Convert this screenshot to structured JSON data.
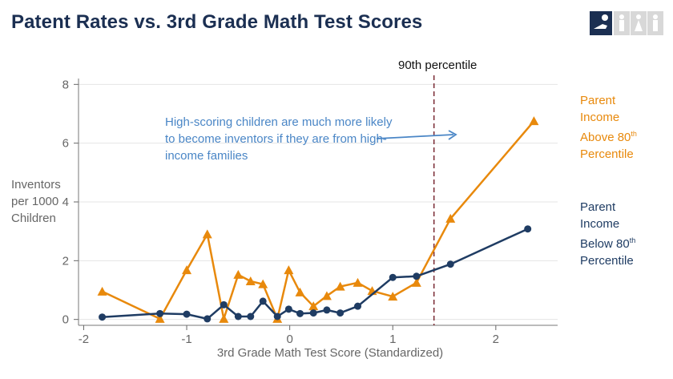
{
  "title": "Patent Rates vs. 3rd Grade Math Test Scores",
  "chart_data": {
    "type": "line",
    "xlabel": "3rd Grade Math Test Score (Standardized)",
    "ylabel_lines": [
      "Inventors",
      "per 1000",
      "Children"
    ],
    "xlim": [
      -2.05,
      2.6
    ],
    "ylim": [
      -0.2,
      8.2
    ],
    "x_ticks": [
      -2,
      -1,
      0,
      1,
      2
    ],
    "y_ticks": [
      0,
      2,
      4,
      6,
      8
    ],
    "grid": "horizontal",
    "reference_line": {
      "x": 1.4,
      "label": "90th percentile"
    },
    "annotation": "High-scoring children are much more likely to become inventors if they are from high-income families",
    "series": [
      {
        "key": "high",
        "legend": {
          "line1": "Parent",
          "line2": "Income",
          "line3": "Above 80",
          "sup": "th",
          "line4": "Percentile"
        },
        "color": "#e8890c",
        "marker": "triangle",
        "points": [
          [
            -1.82,
            0.95
          ],
          [
            -1.26,
            0.02
          ],
          [
            -1.0,
            1.68
          ],
          [
            -0.8,
            2.9
          ],
          [
            -0.64,
            0.02
          ],
          [
            -0.5,
            1.52
          ],
          [
            -0.38,
            1.3
          ],
          [
            -0.26,
            1.2
          ],
          [
            -0.12,
            0.02
          ],
          [
            -0.01,
            1.68
          ],
          [
            0.1,
            0.92
          ],
          [
            0.23,
            0.45
          ],
          [
            0.36,
            0.8
          ],
          [
            0.49,
            1.12
          ],
          [
            0.66,
            1.25
          ],
          [
            0.8,
            0.97
          ],
          [
            1.0,
            0.78
          ],
          [
            1.23,
            1.25
          ],
          [
            1.56,
            3.43
          ],
          [
            2.37,
            6.75
          ]
        ]
      },
      {
        "key": "low",
        "legend": {
          "line1": "Parent",
          "line2": "Income",
          "line3": "Below 80",
          "sup": "th",
          "line4": "Percentile"
        },
        "color": "#1f3c63",
        "marker": "circle",
        "points": [
          [
            -1.82,
            0.08
          ],
          [
            -1.26,
            0.2
          ],
          [
            -1.0,
            0.18
          ],
          [
            -0.8,
            0.02
          ],
          [
            -0.64,
            0.5
          ],
          [
            -0.5,
            0.1
          ],
          [
            -0.38,
            0.1
          ],
          [
            -0.26,
            0.62
          ],
          [
            -0.12,
            0.1
          ],
          [
            -0.01,
            0.35
          ],
          [
            0.1,
            0.2
          ],
          [
            0.23,
            0.22
          ],
          [
            0.36,
            0.32
          ],
          [
            0.49,
            0.22
          ],
          [
            0.66,
            0.45
          ],
          [
            1.0,
            1.43
          ],
          [
            1.23,
            1.47
          ],
          [
            1.56,
            1.88
          ],
          [
            2.31,
            3.08
          ]
        ]
      }
    ]
  }
}
